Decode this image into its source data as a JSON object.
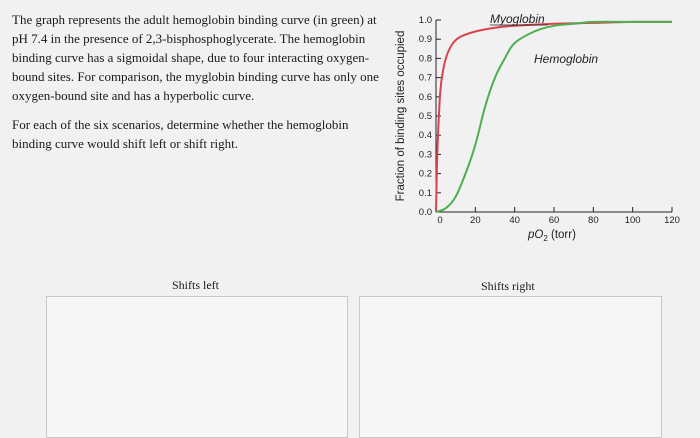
{
  "question": {
    "paragraph1": "The graph represents the adult hemoglobin binding curve (in green) at pH 7.4 in the presence of 2,3-bisphosphoglycerate. The hemoglobin binding curve has a sigmoidal shape, due to four interacting oxygen-bound sites. For comparison, the myglobin binding curve has only one oxygen-bound site and has a hyperbolic curve.",
    "paragraph2": "For each of the six scenarios, determine whether the hemoglobin binding curve would shift left or shift right."
  },
  "chart_data": {
    "type": "line",
    "xlabel": "pO",
    "xlabel_sub": "2",
    "xlabel_unit": "(torr)",
    "ylabel": "Fraction of binding sites occupied",
    "xlim": [
      0,
      120
    ],
    "ylim": [
      0,
      1.0
    ],
    "x_ticks": [
      "0",
      "20",
      "40",
      "60",
      "80",
      "100",
      "120"
    ],
    "y_ticks": [
      "0.0",
      "0.1",
      "0.2",
      "0.3",
      "0.4",
      "0.5",
      "0.6",
      "0.7",
      "0.8",
      "0.9",
      "1.0"
    ],
    "series": [
      {
        "name": "Myoglobin",
        "color": "#d9434e",
        "x": [
          0,
          0.5,
          1,
          2,
          3,
          5,
          8,
          12,
          20,
          30,
          40,
          60,
          80,
          100,
          120
        ],
        "y": [
          0,
          0.25,
          0.4,
          0.6,
          0.7,
          0.8,
          0.87,
          0.91,
          0.94,
          0.96,
          0.97,
          0.98,
          0.985,
          0.99,
          0.99
        ]
      },
      {
        "name": "Hemoglobin",
        "color": "#4caf50",
        "x": [
          0,
          5,
          10,
          15,
          20,
          25,
          30,
          35,
          40,
          50,
          60,
          70,
          80,
          100,
          120
        ],
        "y": [
          0,
          0.02,
          0.08,
          0.2,
          0.35,
          0.55,
          0.7,
          0.8,
          0.88,
          0.94,
          0.97,
          0.98,
          0.99,
          0.99,
          0.99
        ]
      }
    ]
  },
  "bins": {
    "left_label": "Shifts left",
    "right_label": "Shifts right"
  }
}
